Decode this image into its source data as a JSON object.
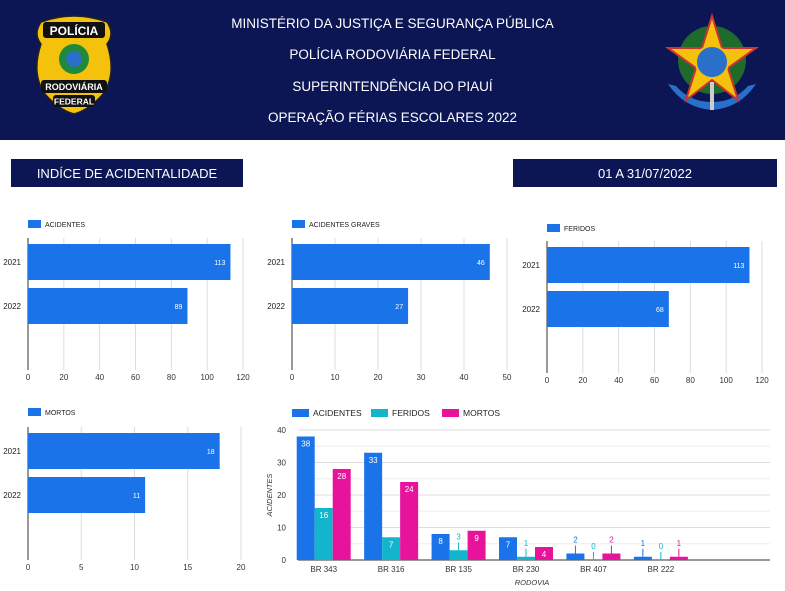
{
  "header": {
    "lines": [
      "MINISTÉRIO DA JUSTIÇA E SEGURANÇA PÚBLICA",
      "POLÍCIA RODOVIÁRIA FEDERAL",
      "SUPERINTENDÊNCIA DO PIAUÍ",
      "OPERAÇÃO FÉRIAS ESCOLARES 2022"
    ],
    "badge_text": [
      "POLÍCIA",
      "RODOVIÁRIA",
      "FEDERAL"
    ]
  },
  "title_box": "INDÍCE DE ACIDENTALIDADE",
  "period_box": "01 A 31/07/2022",
  "colors": {
    "navy": "#0c1654",
    "blue": "#1a73e8",
    "teal": "#12b5cb",
    "pink": "#e8139b"
  },
  "chart_data": [
    {
      "type": "bar",
      "orientation": "horizontal",
      "legend": "ACIDENTES",
      "categories": [
        "2021",
        "2022"
      ],
      "values": [
        113,
        89
      ],
      "xlim": [
        0,
        120
      ],
      "ticks": [
        0,
        20,
        40,
        60,
        80,
        100,
        120
      ]
    },
    {
      "type": "bar",
      "orientation": "horizontal",
      "legend": "ACIDENTES GRAVES",
      "categories": [
        "2021",
        "2022"
      ],
      "values": [
        46,
        27
      ],
      "xlim": [
        0,
        50
      ],
      "ticks": [
        0,
        10,
        20,
        30,
        40,
        50
      ]
    },
    {
      "type": "bar",
      "orientation": "horizontal",
      "legend": "FERIDOS",
      "categories": [
        "2021",
        "2022"
      ],
      "values": [
        113,
        68
      ],
      "xlim": [
        0,
        120
      ],
      "ticks": [
        0,
        20,
        40,
        60,
        80,
        100,
        120
      ]
    },
    {
      "type": "bar",
      "orientation": "horizontal",
      "legend": "MORTOS",
      "categories": [
        "2021",
        "2022"
      ],
      "values": [
        18,
        11
      ],
      "xlim": [
        0,
        20
      ],
      "ticks": [
        0,
        5,
        10,
        15,
        20
      ]
    },
    {
      "type": "bar",
      "orientation": "vertical",
      "categories": [
        "BR 343",
        "BR 316",
        "BR 135",
        "BR 230",
        "BR 407",
        "BR 222"
      ],
      "series": [
        {
          "name": "ACIDENTES",
          "values": [
            38,
            33,
            8,
            7,
            2,
            1
          ]
        },
        {
          "name": "FERIDOS",
          "values": [
            16,
            7,
            3,
            1,
            0,
            0
          ]
        },
        {
          "name": "MORTOS",
          "values": [
            28,
            24,
            9,
            4,
            2,
            1
          ]
        }
      ],
      "xlabel": "RODOVIA",
      "ylabel": "ACIDENTES",
      "ylim": [
        0,
        40
      ],
      "ticks": [
        0,
        10,
        20,
        30,
        40
      ],
      "legend": "top-left"
    }
  ]
}
